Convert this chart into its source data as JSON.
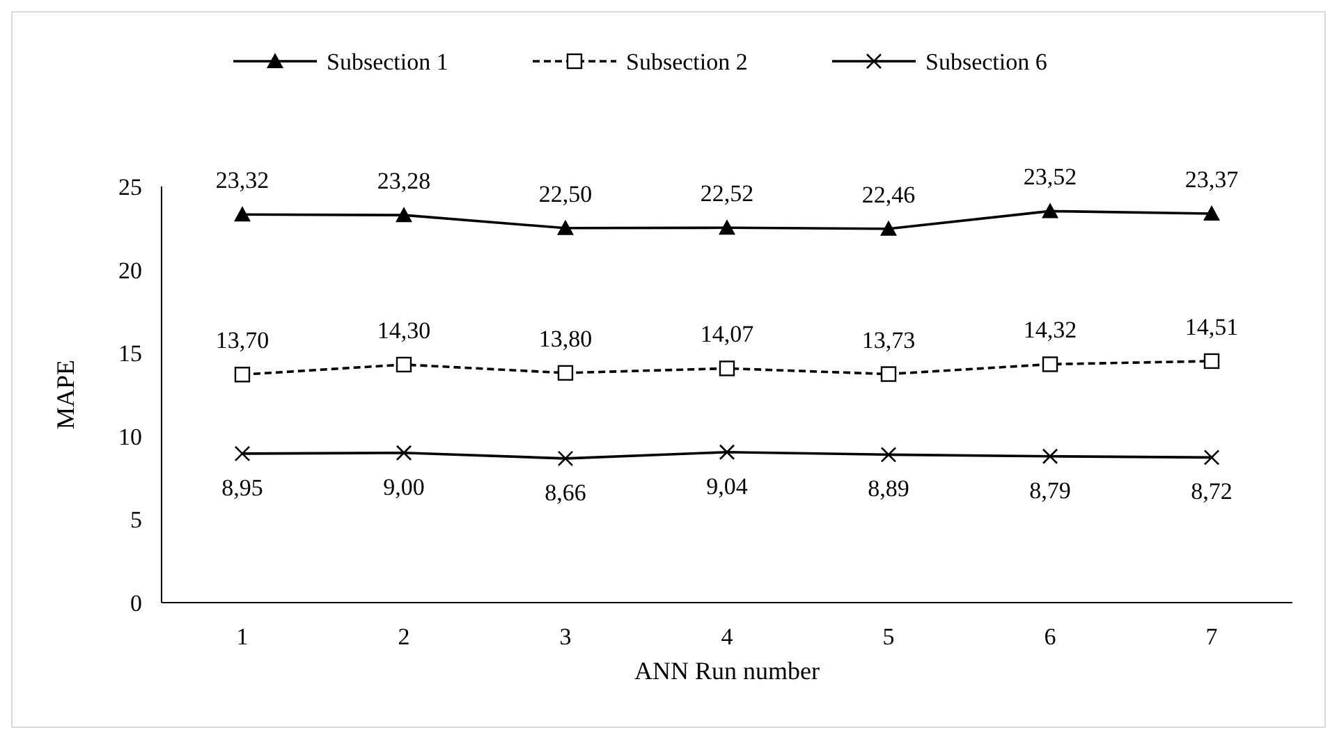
{
  "chart_data": {
    "type": "line",
    "xlabel": "ANN Run number",
    "ylabel": "MAPE",
    "categories": [
      "1",
      "2",
      "3",
      "4",
      "5",
      "6",
      "7"
    ],
    "ylim": [
      0,
      25
    ],
    "yticks": [
      0,
      5,
      10,
      15,
      20,
      25
    ],
    "grid": false,
    "legend": "top",
    "series": [
      {
        "name": "Subsection 1",
        "color": "#000000",
        "marker": "triangle",
        "line_style": "solid",
        "values": [
          23.32,
          23.28,
          22.5,
          22.52,
          22.46,
          23.52,
          23.37
        ],
        "value_labels": [
          "23,32",
          "23,28",
          "22,50",
          "22,52",
          "22,46",
          "23,52",
          "23,37"
        ]
      },
      {
        "name": "Subsection 2",
        "color": "#000000",
        "marker": "square",
        "line_style": "dashed",
        "values": [
          13.7,
          14.3,
          13.8,
          14.07,
          13.73,
          14.32,
          14.51
        ],
        "value_labels": [
          "13,70",
          "14,30",
          "13,80",
          "14,07",
          "13,73",
          "14,32",
          "14,51"
        ]
      },
      {
        "name": "Subsection 6",
        "color": "#000000",
        "marker": "cross",
        "line_style": "solid",
        "values": [
          8.95,
          9.0,
          8.66,
          9.04,
          8.89,
          8.79,
          8.72
        ],
        "value_labels": [
          "8,95",
          "9,00",
          "8,66",
          "9,04",
          "8,89",
          "8,79",
          "8,72"
        ]
      }
    ]
  }
}
